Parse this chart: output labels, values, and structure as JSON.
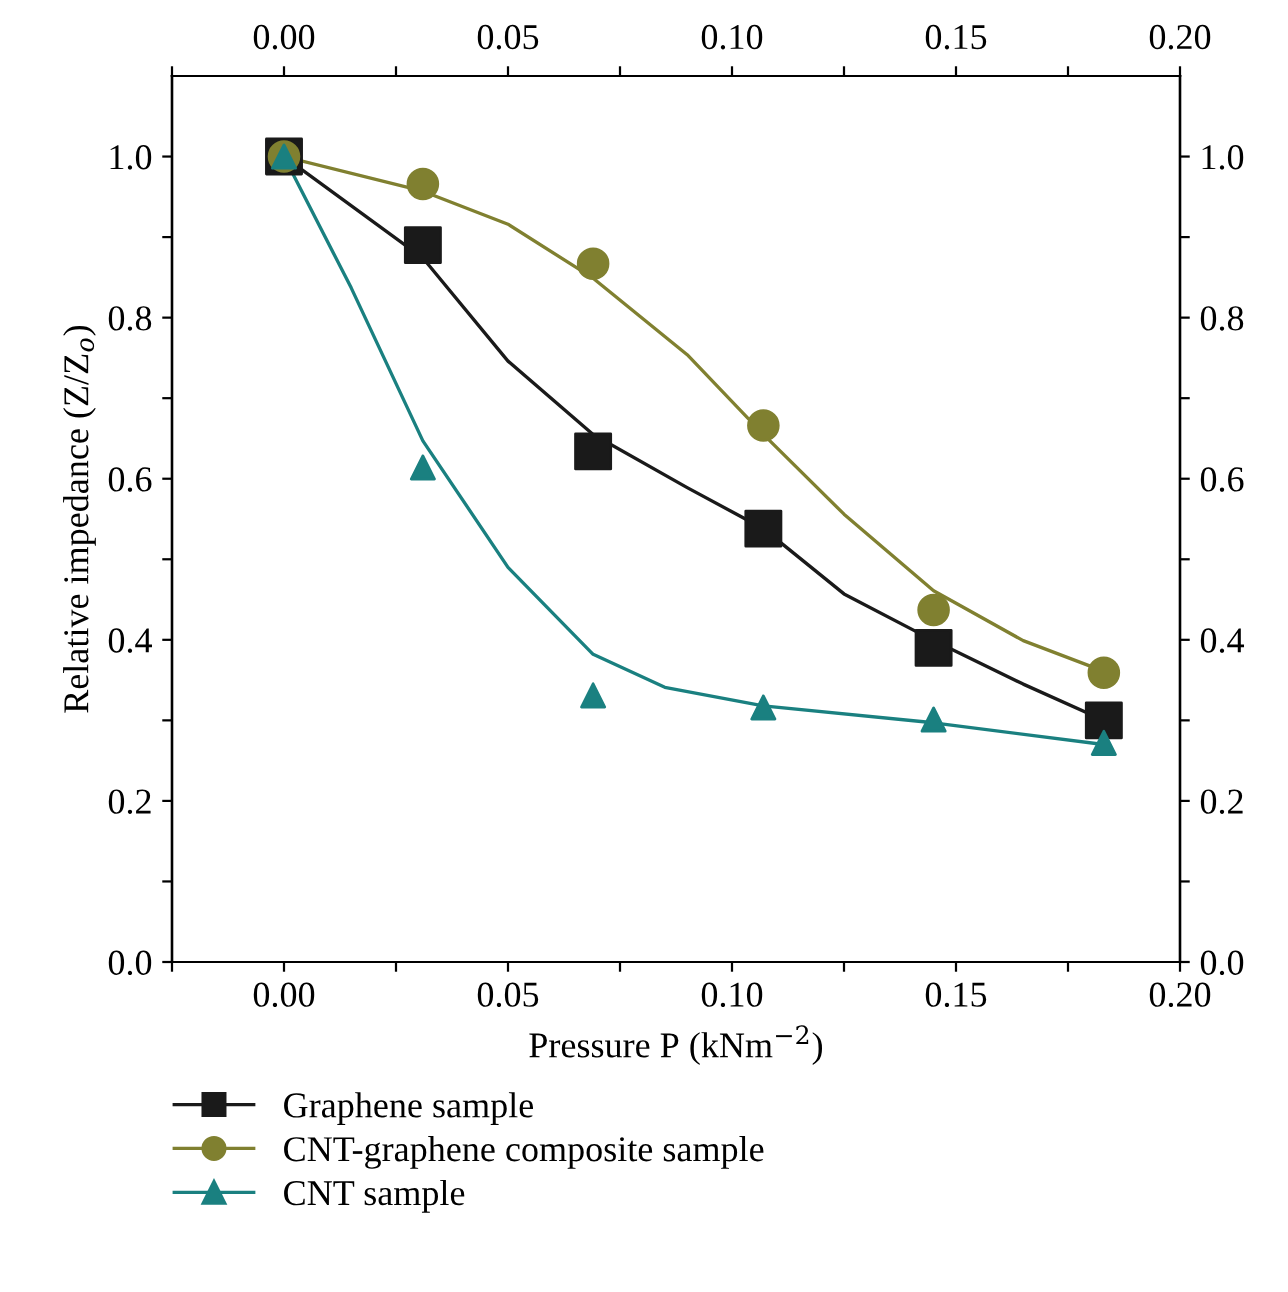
{
  "chart_data": {
    "type": "scatter",
    "xlabel": "Pressure P (kNm$^{−2}$)",
    "ylabel": "Relative impedance (Z/Z$_{o}$)",
    "x": [
      0,
      0.031,
      0.069,
      0.107,
      0.145,
      0.183
    ],
    "series": [
      {
        "name": "Graphene sample",
        "color": "#1a1a1a",
        "marker": "square",
        "values": [
          1.0,
          0.89,
          0.634,
          0.538,
          0.39,
          0.3
        ]
      },
      {
        "name": "CNT-graphene composite sample",
        "color": "#808030",
        "marker": "circle",
        "values": [
          1.0,
          0.966,
          0.867,
          0.666,
          0.437,
          0.359
        ]
      },
      {
        "name": "CNT sample",
        "color": "#1a8080",
        "marker": "triangle",
        "values": [
          1.0,
          0.614,
          0.331,
          0.316,
          0.301,
          0.272
        ]
      },
      {
        "type": "line",
        "color": "#1a1a1a",
        "x": [
          0,
          0.031,
          0.05,
          0.069,
          0.09,
          0.107,
          0.125,
          0.145,
          0.165,
          0.183
        ],
        "values": [
          1.0,
          0.874,
          0.746,
          0.655,
          0.589,
          0.538,
          0.457,
          0.399,
          0.345,
          0.3
        ]
      },
      {
        "type": "line",
        "color": "#808030",
        "x": [
          0,
          0.031,
          0.05,
          0.069,
          0.09,
          0.107,
          0.125,
          0.145,
          0.165,
          0.183
        ],
        "values": [
          1.0,
          0.957,
          0.916,
          0.849,
          0.754,
          0.655,
          0.556,
          0.461,
          0.399,
          0.361
        ]
      },
      {
        "type": "line",
        "color": "#1a8080",
        "x": [
          0,
          0.015,
          0.031,
          0.05,
          0.069,
          0.085,
          0.107,
          0.145,
          0.183
        ],
        "values": [
          1.0,
          0.837,
          0.647,
          0.49,
          0.382,
          0.341,
          0.318,
          0.297,
          0.27
        ]
      }
    ],
    "xlim": [
      -0.025,
      0.2
    ],
    "ylim": [
      0,
      1.1
    ],
    "xticks": [
      {
        "value": -0.025,
        "label": null
      },
      "0.00",
      {
        "value": 0.025,
        "label": null
      },
      0.05,
      {
        "value": 0.075,
        "label": null
      },
      "0.10",
      {
        "value": 0.125,
        "label": null
      },
      0.15,
      {
        "value": 0.175,
        "label": null
      },
      "0.20"
    ],
    "yticks": [
      "0.0",
      {
        "value": 0.1,
        "label": null
      },
      0.2,
      {
        "value": 0.3,
        "label": null
      },
      0.4,
      {
        "value": 0.5,
        "label": null
      },
      0.6,
      {
        "value": 0.7,
        "label": null
      },
      0.8,
      {
        "value": 0.9,
        "label": null
      },
      "1.0"
    ],
    "x2lim": [
      -0.025,
      0.2
    ],
    "x2ticks": [
      {
        "value": -0.025,
        "label": null
      },
      "0.00",
      {
        "value": 0.025,
        "label": null
      },
      0.05,
      {
        "value": 0.075,
        "label": null
      },
      "0.10",
      {
        "value": 0.125,
        "label": null
      },
      0.15,
      {
        "value": 0.175,
        "label": null
      },
      "0.20"
    ],
    "y2lim": [
      0,
      1.1
    ],
    "y2ticks": [
      "0.0",
      {
        "value": 0.1,
        "label": null
      },
      0.2,
      {
        "value": 0.3,
        "label": null
      },
      0.4,
      {
        "value": 0.5,
        "label": null
      },
      0.6,
      {
        "value": 0.7,
        "label": null
      },
      0.8,
      {
        "value": 0.9,
        "label": null
      },
      "1.0"
    ],
    "grid": false,
    "legend": "bottom",
    "line_style": "solid"
  }
}
